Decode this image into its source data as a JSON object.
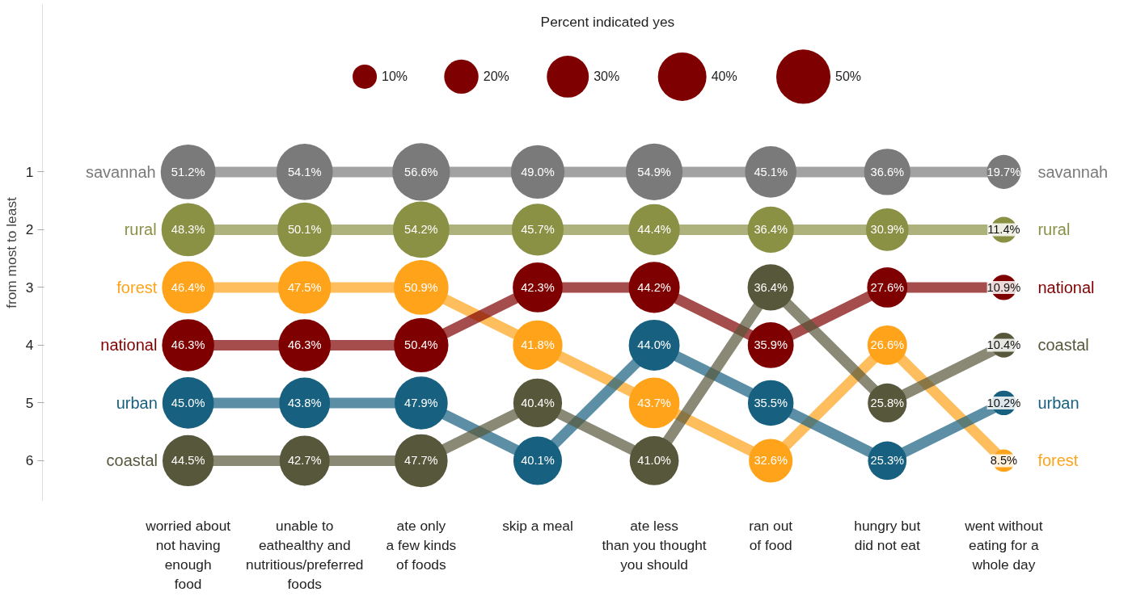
{
  "chart_data": {
    "type": "bubble",
    "legend_title": "Percent indicated yes",
    "ylabel": "from most to least",
    "categories": [
      "worried about\nnot having\nenough\nfood",
      "unable to\neathealthy and\nnutritious/preferred\nfoods",
      "ate only\na few kinds\nof foods",
      "skip a meal",
      "ate less\nthan you thought\nyou should",
      "ran out\nof food",
      "hungry but\ndid not eat",
      "went without\neating for a\nwhole day"
    ],
    "ylim": [
      6.7,
      -1.9
    ],
    "yticks": [
      1,
      2,
      3,
      4,
      5,
      6
    ],
    "grid": false,
    "line_style": "solid",
    "size_legend": [
      {
        "value": 10,
        "label": "10%"
      },
      {
        "value": 20,
        "label": "20%"
      },
      {
        "value": 30,
        "label": "30%"
      },
      {
        "value": 40,
        "label": "40%"
      },
      {
        "value": 50,
        "label": "50%"
      }
    ],
    "series": [
      {
        "type": "line",
        "color": "#7a7a7a",
        "values": [
          1,
          1,
          1,
          1,
          1,
          1,
          1,
          1
        ]
      },
      {
        "type": "line",
        "color": "#8a9044",
        "values": [
          2,
          2,
          2,
          2,
          2,
          2,
          2,
          2
        ]
      },
      {
        "type": "line",
        "color": "#ffa31a",
        "values": [
          3,
          3,
          3,
          4,
          5,
          6,
          4,
          6
        ]
      },
      {
        "type": "line",
        "color": "#7f0000",
        "values": [
          4,
          4,
          4,
          3,
          3,
          4,
          3,
          3
        ]
      },
      {
        "type": "line",
        "color": "#17607f",
        "values": [
          5,
          5,
          5,
          6,
          4,
          5,
          6,
          5
        ]
      },
      {
        "type": "line",
        "color": "#57573b",
        "values": [
          6,
          6,
          6,
          5,
          6,
          3,
          5,
          4
        ]
      },
      {
        "name": "savannah",
        "color": "#7a7a7a",
        "values": [
          1,
          1,
          1,
          1,
          1,
          1,
          1,
          1
        ],
        "sizes": [
          51.2,
          54.1,
          56.6,
          49.0,
          54.9,
          45.1,
          36.6,
          19.7
        ],
        "value_labels": [
          "51.2%",
          "54.1%",
          "56.6%",
          "49.0%",
          "54.9%",
          "45.1%",
          "36.6%",
          "19.7%"
        ]
      },
      {
        "name": "rural",
        "color": "#8a9044",
        "values": [
          2,
          2,
          2,
          2,
          2,
          2,
          2,
          2
        ],
        "sizes": [
          48.3,
          50.1,
          54.2,
          45.7,
          44.4,
          36.4,
          30.9,
          11.4
        ],
        "value_labels": [
          "48.3%",
          "50.1%",
          "54.2%",
          "45.7%",
          "44.4%",
          "36.4%",
          "30.9%",
          "11.4%"
        ]
      },
      {
        "name": "forest",
        "color": "#ffa31a",
        "values": [
          3,
          3,
          3,
          4,
          5,
          6,
          4,
          6
        ],
        "sizes": [
          46.4,
          47.5,
          50.9,
          41.8,
          43.7,
          32.6,
          26.6,
          8.5
        ],
        "value_labels": [
          "46.4%",
          "47.5%",
          "50.9%",
          "41.8%",
          "43.7%",
          "32.6%",
          "26.6%",
          "8.5%"
        ]
      },
      {
        "name": "national",
        "color": "#7f0000",
        "values": [
          4,
          4,
          4,
          3,
          3,
          4,
          3,
          3
        ],
        "sizes": [
          46.3,
          46.3,
          50.4,
          42.3,
          44.2,
          35.9,
          27.6,
          10.9
        ],
        "value_labels": [
          "46.3%",
          "46.3%",
          "50.4%",
          "42.3%",
          "44.2%",
          "35.9%",
          "27.6%",
          "10.9%"
        ]
      },
      {
        "name": "urban",
        "color": "#17607f",
        "values": [
          5,
          5,
          5,
          6,
          4,
          5,
          6,
          5
        ],
        "sizes": [
          45.0,
          43.8,
          47.9,
          40.1,
          44.0,
          35.5,
          25.3,
          10.2
        ],
        "value_labels": [
          "45.0%",
          "43.8%",
          "47.9%",
          "40.1%",
          "44.0%",
          "35.5%",
          "25.3%",
          "10.2%"
        ]
      },
      {
        "name": "coastal",
        "color": "#57573b",
        "values": [
          6,
          6,
          6,
          5,
          6,
          3,
          5,
          4
        ],
        "sizes": [
          44.5,
          42.7,
          47.7,
          40.4,
          41.0,
          36.4,
          25.8,
          10.4
        ],
        "value_labels": [
          "44.5%",
          "42.7%",
          "47.7%",
          "40.4%",
          "41.0%",
          "36.4%",
          "25.8%",
          "10.4%"
        ]
      }
    ]
  }
}
